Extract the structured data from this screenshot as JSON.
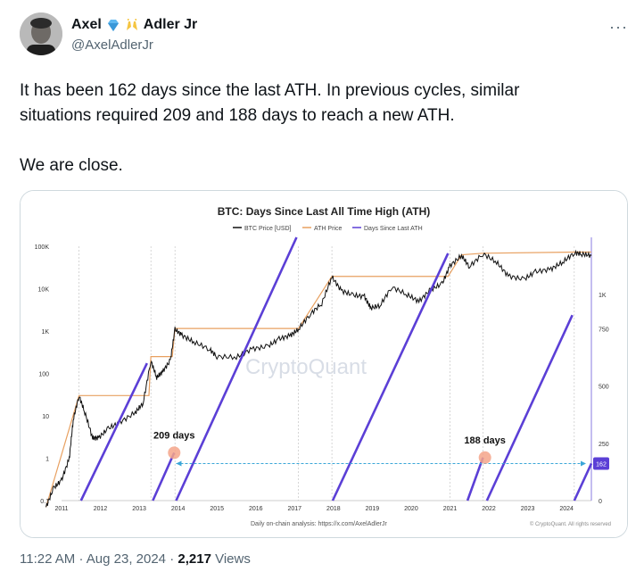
{
  "author": {
    "name_first": "Axel",
    "name_last": "Adler Jr",
    "handle": "@AxelAdlerJr",
    "badge_icons": [
      "diamond-icon",
      "raised-hands-icon"
    ]
  },
  "more_label": "···",
  "tweet": {
    "line1": "It has been 162 days since the last ATH. In previous cycles, similar",
    "line2": "situations required 209 and 188 days to reach a new ATH.",
    "line3": "We are close."
  },
  "meta": {
    "time": "11:22 AM",
    "date": "Aug 23, 2024",
    "views": "2,217",
    "views_label": "Views",
    "separator": "·"
  },
  "chart_data": {
    "type": "line",
    "title": "BTC: Days Since Last All Time High (ATH)",
    "legend": [
      "BTC Price [USD]",
      "ATH Price",
      "Days Since Last ATH"
    ],
    "legend_position": "top",
    "watermark": "CryptoQuant",
    "x_ticks": [
      "2011",
      "2012",
      "2013",
      "2014",
      "2015",
      "2016",
      "2017",
      "2018",
      "2019",
      "2020",
      "2021",
      "2022",
      "2023",
      "2024"
    ],
    "y_left_ticks": [
      "100K",
      "10K",
      "1K",
      "100",
      "10",
      "1",
      "0.1"
    ],
    "y_left_scale": "log",
    "y_left_range": [
      0.1,
      100000
    ],
    "y_right_ticks": [
      "1K",
      "750",
      "500",
      "250",
      "0"
    ],
    "y_right_range": [
      0,
      1150
    ],
    "colors": {
      "btc_price": "#111111",
      "ath_price": "#e8a060",
      "days_since_ath": "#5b3fd6",
      "arrow": "#3aa6d8",
      "marker": "#f4a58a"
    },
    "annotations": [
      {
        "text": "209 days",
        "x": "2013.9",
        "y_days": 209
      },
      {
        "text": "188 days",
        "x": "2021.9",
        "y_days": 188
      }
    ],
    "current_days_label": "162",
    "footnote_left": "Daily on-chain analysis: https://x.com/AxelAdlerJr",
    "footnote_right": "© CryptoQuant. All rights reserved",
    "btc_price_series": [
      {
        "x": 2010.6,
        "y": 0.07
      },
      {
        "x": 2010.8,
        "y": 0.2
      },
      {
        "x": 2011.0,
        "y": 0.3
      },
      {
        "x": 2011.2,
        "y": 1
      },
      {
        "x": 2011.3,
        "y": 8
      },
      {
        "x": 2011.45,
        "y": 30
      },
      {
        "x": 2011.6,
        "y": 12
      },
      {
        "x": 2011.8,
        "y": 3
      },
      {
        "x": 2011.95,
        "y": 3
      },
      {
        "x": 2012.2,
        "y": 5
      },
      {
        "x": 2012.5,
        "y": 7
      },
      {
        "x": 2012.9,
        "y": 12
      },
      {
        "x": 2013.1,
        "y": 20
      },
      {
        "x": 2013.3,
        "y": 200
      },
      {
        "x": 2013.45,
        "y": 80
      },
      {
        "x": 2013.6,
        "y": 110
      },
      {
        "x": 2013.8,
        "y": 200
      },
      {
        "x": 2013.92,
        "y": 1100
      },
      {
        "x": 2014.1,
        "y": 800
      },
      {
        "x": 2014.4,
        "y": 550
      },
      {
        "x": 2014.8,
        "y": 380
      },
      {
        "x": 2015.0,
        "y": 250
      },
      {
        "x": 2015.5,
        "y": 240
      },
      {
        "x": 2015.9,
        "y": 380
      },
      {
        "x": 2016.3,
        "y": 430
      },
      {
        "x": 2016.6,
        "y": 650
      },
      {
        "x": 2016.9,
        "y": 800
      },
      {
        "x": 2017.1,
        "y": 1100
      },
      {
        "x": 2017.4,
        "y": 2500
      },
      {
        "x": 2017.7,
        "y": 4500
      },
      {
        "x": 2017.96,
        "y": 19000
      },
      {
        "x": 2018.2,
        "y": 9000
      },
      {
        "x": 2018.5,
        "y": 7000
      },
      {
        "x": 2018.8,
        "y": 6500
      },
      {
        "x": 2018.96,
        "y": 3500
      },
      {
        "x": 2019.2,
        "y": 4000
      },
      {
        "x": 2019.5,
        "y": 11000
      },
      {
        "x": 2019.9,
        "y": 7200
      },
      {
        "x": 2020.2,
        "y": 5000
      },
      {
        "x": 2020.5,
        "y": 9500
      },
      {
        "x": 2020.8,
        "y": 13000
      },
      {
        "x": 2021.0,
        "y": 35000
      },
      {
        "x": 2021.3,
        "y": 60000
      },
      {
        "x": 2021.5,
        "y": 33000
      },
      {
        "x": 2021.85,
        "y": 67000
      },
      {
        "x": 2022.2,
        "y": 42000
      },
      {
        "x": 2022.5,
        "y": 20000
      },
      {
        "x": 2022.9,
        "y": 16500
      },
      {
        "x": 2023.2,
        "y": 25000
      },
      {
        "x": 2023.6,
        "y": 29000
      },
      {
        "x": 2023.9,
        "y": 42000
      },
      {
        "x": 2024.2,
        "y": 70000
      },
      {
        "x": 2024.4,
        "y": 66000
      },
      {
        "x": 2024.64,
        "y": 60000
      }
    ],
    "ath_price_series": [
      {
        "x": 2010.6,
        "y": 0.07
      },
      {
        "x": 2011.45,
        "y": 30
      },
      {
        "x": 2013.25,
        "y": 30
      },
      {
        "x": 2013.3,
        "y": 250
      },
      {
        "x": 2013.85,
        "y": 250
      },
      {
        "x": 2013.92,
        "y": 1150
      },
      {
        "x": 2017.1,
        "y": 1150
      },
      {
        "x": 2017.96,
        "y": 19500
      },
      {
        "x": 2020.95,
        "y": 19500
      },
      {
        "x": 2021.3,
        "y": 63000
      },
      {
        "x": 2021.85,
        "y": 68500
      },
      {
        "x": 2024.2,
        "y": 73000
      },
      {
        "x": 2024.64,
        "y": 73000
      }
    ],
    "days_since_ath_segments": [
      [
        {
          "x": 2011.5,
          "y": 0
        },
        {
          "x": 2013.2,
          "y": 600
        }
      ],
      [
        {
          "x": 2013.35,
          "y": 0
        },
        {
          "x": 2013.9,
          "y": 209
        }
      ],
      [
        {
          "x": 2013.95,
          "y": 0
        },
        {
          "x": 2017.05,
          "y": 1150
        }
      ],
      [
        {
          "x": 2017.98,
          "y": 0
        },
        {
          "x": 2020.95,
          "y": 1080
        }
      ],
      [
        {
          "x": 2021.45,
          "y": 0
        },
        {
          "x": 2021.85,
          "y": 188
        }
      ],
      [
        {
          "x": 2021.95,
          "y": 0
        },
        {
          "x": 2024.15,
          "y": 810
        }
      ],
      [
        {
          "x": 2024.2,
          "y": 0
        },
        {
          "x": 2024.64,
          "y": 162
        }
      ]
    ]
  }
}
